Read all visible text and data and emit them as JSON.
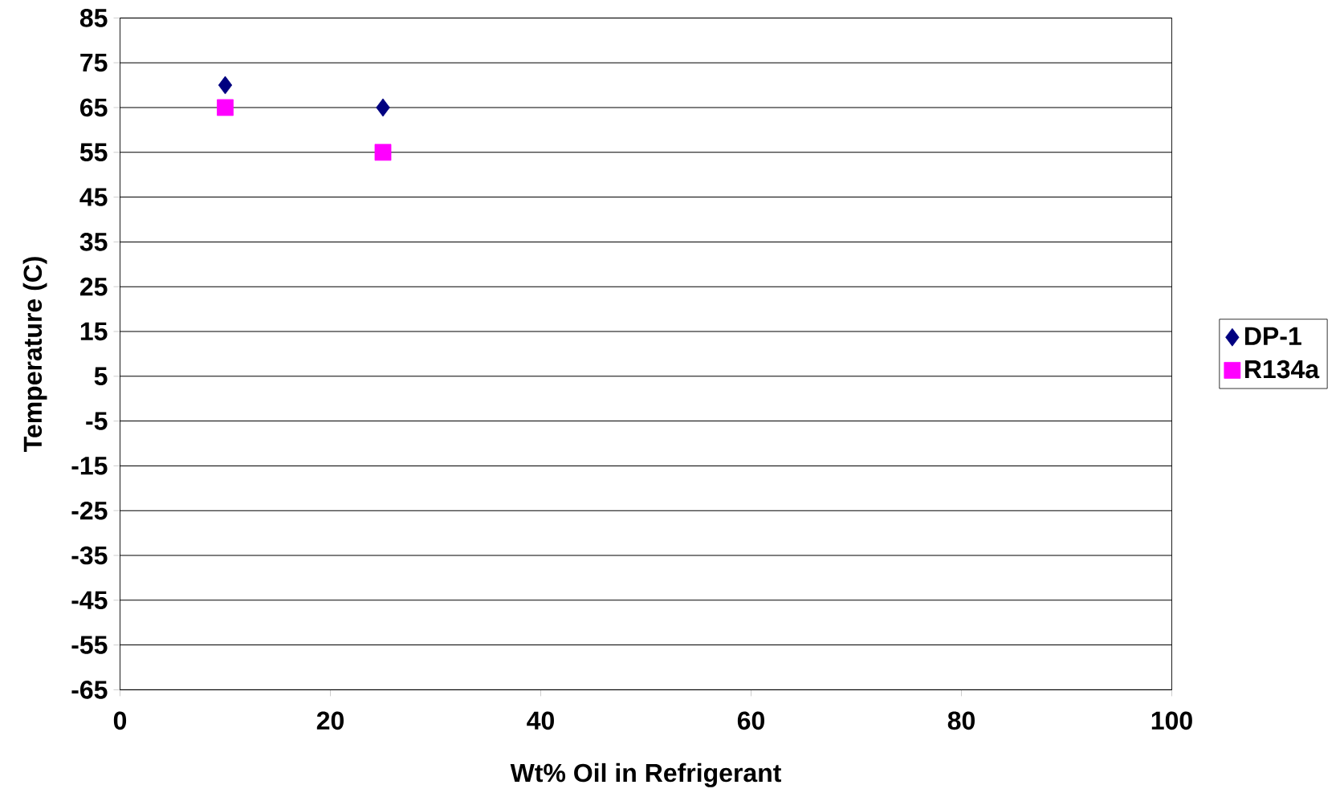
{
  "chart_data": {
    "type": "scatter",
    "xlabel": "Wt% Oil in Refrigerant",
    "ylabel": "Temperature (C)",
    "x": [
      10,
      25
    ],
    "series": [
      {
        "name": "DP-1",
        "color": "#000080",
        "marker": "diamond",
        "values": [
          70,
          65
        ]
      },
      {
        "name": "R134a",
        "color": "#ff00ff",
        "marker": "square",
        "values": [
          65,
          55
        ]
      }
    ],
    "xlim": [
      0,
      100
    ],
    "xticks": [
      0,
      20,
      40,
      60,
      80,
      100
    ],
    "ylim": [
      -65,
      85
    ],
    "yticks": [
      -65,
      -55,
      -45,
      -35,
      -25,
      -15,
      -5,
      5,
      15,
      25,
      35,
      45,
      55,
      65,
      75,
      85
    ],
    "grid": "y",
    "legend": "right"
  }
}
